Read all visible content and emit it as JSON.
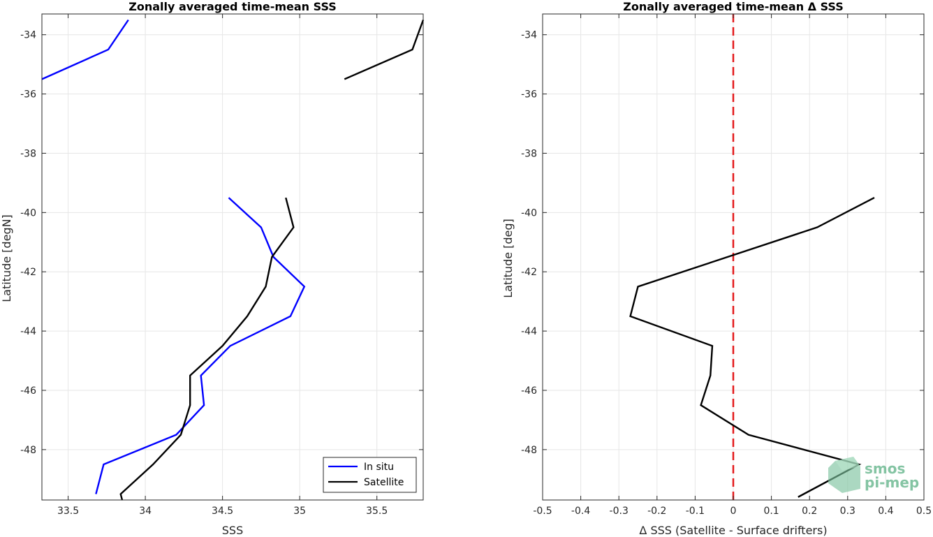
{
  "chart_data": [
    {
      "type": "line",
      "title": "Zonally averaged time-mean SSS",
      "xlabel": "SSS",
      "ylabel": "Latitude [degN]",
      "xlim": [
        33.33,
        35.8
      ],
      "ylim": [
        -49.7,
        -33.3
      ],
      "xticks": [
        "33.5",
        "34",
        "34.5",
        "35",
        "35.5"
      ],
      "xtick_values": [
        33.5,
        34,
        34.5,
        35,
        35.5
      ],
      "yticks": [
        "-34",
        "-36",
        "-38",
        "-40",
        "-42",
        "-44",
        "-46",
        "-48"
      ],
      "ytick_values": [
        -34,
        -36,
        -38,
        -40,
        -42,
        -44,
        -46,
        -48
      ],
      "grid": true,
      "legend_position": "bottom-right",
      "series": [
        {
          "name": "In situ",
          "color": "#0000ff",
          "segments": [
            [
              [
                33.89,
                -33.5
              ],
              [
                33.76,
                -34.5
              ],
              [
                33.33,
                -35.5
              ]
            ],
            [
              [
                34.54,
                -39.5
              ],
              [
                34.75,
                -40.5
              ],
              [
                34.83,
                -41.5
              ],
              [
                35.03,
                -42.5
              ],
              [
                34.94,
                -43.5
              ],
              [
                34.55,
                -44.5
              ],
              [
                34.36,
                -45.5
              ],
              [
                34.38,
                -46.5
              ],
              [
                34.2,
                -47.5
              ],
              [
                33.73,
                -48.5
              ],
              [
                33.68,
                -49.5
              ]
            ]
          ]
        },
        {
          "name": "Satellite",
          "color": "#000000",
          "segments": [
            [
              [
                35.8,
                -33.5
              ],
              [
                35.73,
                -34.5
              ],
              [
                35.29,
                -35.5
              ]
            ],
            [
              [
                34.91,
                -39.5
              ],
              [
                34.96,
                -40.5
              ],
              [
                34.82,
                -41.5
              ],
              [
                34.78,
                -42.5
              ],
              [
                34.66,
                -43.5
              ],
              [
                34.5,
                -44.5
              ],
              [
                34.29,
                -45.5
              ],
              [
                34.29,
                -46.5
              ],
              [
                34.23,
                -47.5
              ],
              [
                34.05,
                -48.5
              ],
              [
                33.84,
                -49.5
              ],
              [
                33.85,
                -49.7
              ]
            ]
          ]
        }
      ]
    },
    {
      "type": "line",
      "title": "Zonally averaged time-mean Δ SSS",
      "xlabel": "Δ SSS (Satellite - Surface drifters)",
      "ylabel": "Latitude [deg]",
      "xlim": [
        -0.5,
        0.5
      ],
      "ylim": [
        -49.7,
        -33.3
      ],
      "xticks": [
        "-0.5",
        "-0.4",
        "-0.3",
        "-0.2",
        "-0.1",
        "0",
        "0.1",
        "0.2",
        "0.3",
        "0.4",
        "0.5"
      ],
      "xtick_values": [
        -0.5,
        -0.4,
        -0.3,
        -0.2,
        -0.1,
        0,
        0.1,
        0.2,
        0.3,
        0.4,
        0.5
      ],
      "yticks": [
        "-34",
        "-36",
        "-38",
        "-40",
        "-42",
        "-44",
        "-46",
        "-48"
      ],
      "ytick_values": [
        -34,
        -36,
        -38,
        -40,
        -42,
        -44,
        -46,
        -48
      ],
      "grid": true,
      "reference_line": {
        "x": 0,
        "color": "#e41a1c",
        "style": "dashed"
      },
      "series": [
        {
          "color": "#000000",
          "segments": [
            [
              [
                0.37,
                -39.5
              ],
              [
                0.22,
                -40.5
              ],
              [
                -0.25,
                -42.5
              ],
              [
                -0.27,
                -43.5
              ],
              [
                -0.055,
                -44.5
              ],
              [
                -0.06,
                -45.5
              ],
              [
                -0.085,
                -46.5
              ],
              [
                0.04,
                -47.5
              ],
              [
                0.33,
                -48.5
              ],
              [
                0.17,
                -49.6
              ]
            ]
          ]
        }
      ]
    }
  ],
  "watermark": {
    "line1": "smos",
    "line2": "pi-mep",
    "color": "#6fba93"
  }
}
